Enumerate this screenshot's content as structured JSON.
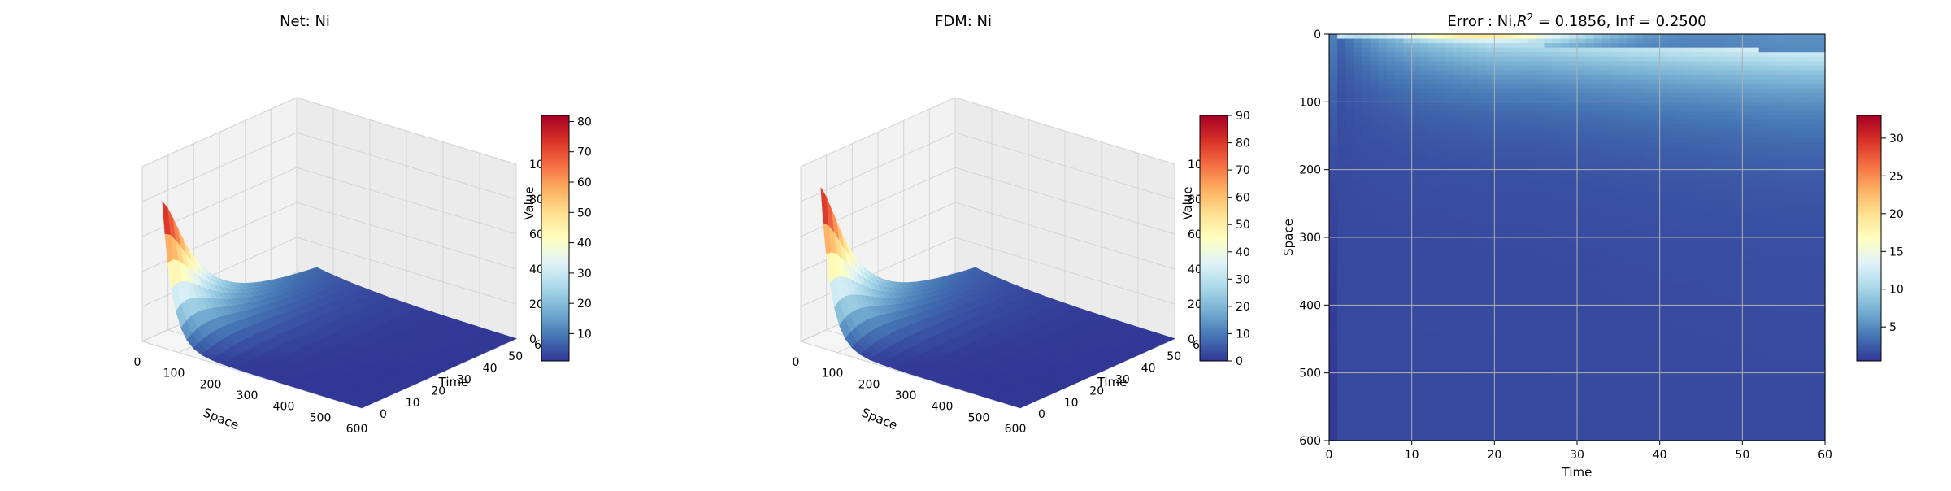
{
  "chart_data": [
    {
      "type": "surface3d",
      "title": "Net: Ni",
      "xlabel": "Space",
      "ylabel": "Time",
      "zlabel": "Value",
      "xlim": [
        0,
        600
      ],
      "ylim": [
        0,
        60
      ],
      "zlim": [
        0,
        100
      ],
      "xticks": [
        "0",
        "100",
        "200",
        "300",
        "400",
        "500",
        "600"
      ],
      "yticks": [
        "0",
        "10",
        "20",
        "30",
        "40",
        "50",
        "60"
      ],
      "zticks": [
        "0",
        "20",
        "40",
        "60",
        "80",
        "100"
      ],
      "peak_value": 82,
      "colormap": "RdYlBu_r",
      "colorbar": {
        "min": 1,
        "max": 82,
        "ticks": [
          "10",
          "20",
          "30",
          "40",
          "50",
          "60",
          "70",
          "80"
        ]
      }
    },
    {
      "type": "surface3d",
      "title": "FDM: Ni",
      "xlabel": "Space",
      "ylabel": "Time",
      "zlabel": "Value",
      "xlim": [
        0,
        600
      ],
      "ylim": [
        0,
        60
      ],
      "zlim": [
        0,
        100
      ],
      "xticks": [
        "0",
        "100",
        "200",
        "300",
        "400",
        "500",
        "600"
      ],
      "yticks": [
        "0",
        "10",
        "20",
        "30",
        "40",
        "50",
        "60"
      ],
      "zticks": [
        "0",
        "20",
        "40",
        "60",
        "80",
        "100"
      ],
      "peak_value": 90,
      "colormap": "RdYlBu_r",
      "colorbar": {
        "min": 0,
        "max": 90,
        "ticks": [
          "0",
          "10",
          "20",
          "30",
          "40",
          "50",
          "60",
          "70",
          "80",
          "90"
        ]
      }
    },
    {
      "type": "heatmap",
      "title": "Error : Ni,R² = 0.1856, Inf = 0.2500",
      "title_main": "Error : Ni,",
      "title_r": "R",
      "title_sup": "2",
      "title_tail": " = 0.1856, Inf = 0.2500",
      "xlabel": "Time",
      "ylabel": "Space",
      "xlim": [
        0,
        60
      ],
      "ylim": [
        600,
        0
      ],
      "xticks": [
        "0",
        "10",
        "20",
        "30",
        "40",
        "50",
        "60"
      ],
      "yticks": [
        "0",
        "100",
        "200",
        "300",
        "400",
        "500",
        "600"
      ],
      "grid": true,
      "colormap": "RdYlBu_r",
      "colorbar": {
        "min": 0.5,
        "max": 33,
        "ticks": [
          "5",
          "10",
          "15",
          "20",
          "25",
          "30"
        ]
      }
    }
  ]
}
